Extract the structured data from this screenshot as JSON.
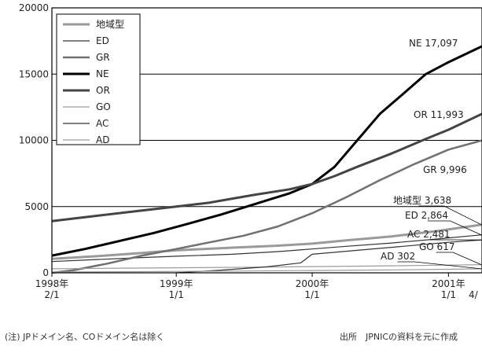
{
  "chart_data": {
    "type": "line",
    "x_ticks": [
      {
        "x": "1998-02-01",
        "line1": "1998年",
        "line2": "2/1"
      },
      {
        "x": "1999-01-01",
        "line1": "1999年",
        "line2": "1/1"
      },
      {
        "x": "2000-01-01",
        "line1": "2000年",
        "line2": "1/1"
      },
      {
        "x": "2001-01-01",
        "line1": "2001年",
        "line2": "1/1"
      }
    ],
    "x_end_label": "4/",
    "xlim": [
      "1998-02-01",
      "2001-04-01"
    ],
    "ylim": [
      0,
      20000
    ],
    "y_ticks": [
      0,
      5000,
      10000,
      15000,
      20000
    ],
    "gridlines_y": [
      5000,
      10000,
      15000
    ],
    "legend_position": "top-left",
    "series": [
      {
        "name": "地域型",
        "color": "#9a9a9a",
        "width": 3,
        "points": [
          [
            "1998-02-01",
            1050
          ],
          [
            "1998-06-01",
            1250
          ],
          [
            "1998-10-01",
            1500
          ],
          [
            "1999-01-01",
            1700
          ],
          [
            "1999-06-01",
            1900
          ],
          [
            "1999-10-01",
            2050
          ],
          [
            "2000-01-01",
            2200
          ],
          [
            "2000-04-01",
            2450
          ],
          [
            "2000-08-01",
            2750
          ],
          [
            "2000-12-01",
            3150
          ],
          [
            "2001-04-01",
            3638
          ]
        ]
      },
      {
        "name": "ED",
        "color": "#333333",
        "width": 1.2,
        "points": [
          [
            "1998-02-01",
            850
          ],
          [
            "1998-06-01",
            1000
          ],
          [
            "1998-10-01",
            1150
          ],
          [
            "1999-01-01",
            1250
          ],
          [
            "1999-06-01",
            1400
          ],
          [
            "1999-10-01",
            1600
          ],
          [
            "2000-01-01",
            1800
          ],
          [
            "2000-04-01",
            2000
          ],
          [
            "2000-08-01",
            2250
          ],
          [
            "2000-12-01",
            2550
          ],
          [
            "2001-04-01",
            2864
          ]
        ]
      },
      {
        "name": "GR",
        "color": "#707070",
        "width": 2.5,
        "points": [
          [
            "1998-02-01",
            0
          ],
          [
            "1998-04-01",
            200
          ],
          [
            "1998-07-01",
            700
          ],
          [
            "1998-10-01",
            1300
          ],
          [
            "1999-01-01",
            1800
          ],
          [
            "1999-04-01",
            2300
          ],
          [
            "1999-07-01",
            2800
          ],
          [
            "1999-10-01",
            3500
          ],
          [
            "2000-01-01",
            4500
          ],
          [
            "2000-04-01",
            5700
          ],
          [
            "2000-07-01",
            7000
          ],
          [
            "2000-10-01",
            8200
          ],
          [
            "2001-01-01",
            9300
          ],
          [
            "2001-04-01",
            9996
          ]
        ]
      },
      {
        "name": "NE",
        "color": "#000000",
        "width": 3,
        "points": [
          [
            "1998-02-01",
            1300
          ],
          [
            "1998-05-01",
            1800
          ],
          [
            "1998-08-01",
            2400
          ],
          [
            "1998-11-01",
            3000
          ],
          [
            "1999-02-01",
            3700
          ],
          [
            "1999-05-01",
            4400
          ],
          [
            "1999-08-01",
            5200
          ],
          [
            "1999-11-01",
            6000
          ],
          [
            "2000-01-01",
            6700
          ],
          [
            "2000-03-01",
            8000
          ],
          [
            "2000-05-01",
            10000
          ],
          [
            "2000-07-01",
            12000
          ],
          [
            "2000-09-01",
            13500
          ],
          [
            "2000-11-01",
            15000
          ],
          [
            "2001-01-01",
            15900
          ],
          [
            "2001-04-01",
            17097
          ]
        ]
      },
      {
        "name": "OR",
        "color": "#444444",
        "width": 3,
        "points": [
          [
            "1998-02-01",
            3900
          ],
          [
            "1998-06-01",
            4300
          ],
          [
            "1998-10-01",
            4700
          ],
          [
            "1999-01-01",
            5000
          ],
          [
            "1999-04-01",
            5300
          ],
          [
            "1999-06-01",
            5600
          ],
          [
            "1999-08-01",
            5900
          ],
          [
            "1999-11-01",
            6300
          ],
          [
            "2000-01-01",
            6700
          ],
          [
            "2000-03-01",
            7300
          ],
          [
            "2000-05-01",
            8000
          ],
          [
            "2000-08-01",
            9000
          ],
          [
            "2000-11-01",
            10100
          ],
          [
            "2001-01-01",
            10800
          ],
          [
            "2001-04-01",
            11993
          ]
        ]
      },
      {
        "name": "GO",
        "color": "#9a9a9a",
        "width": 1.2,
        "points": [
          [
            "1998-02-01",
            300
          ],
          [
            "1998-08-01",
            350
          ],
          [
            "1999-01-01",
            380
          ],
          [
            "1999-08-01",
            430
          ],
          [
            "2000-01-01",
            470
          ],
          [
            "2000-08-01",
            530
          ],
          [
            "2001-01-01",
            580
          ],
          [
            "2001-04-01",
            617
          ]
        ]
      },
      {
        "name": "AC",
        "color": "#333333",
        "width": 1.2,
        "points": [
          [
            "1999-01-01",
            0
          ],
          [
            "1999-05-01",
            200
          ],
          [
            "1999-09-01",
            450
          ],
          [
            "1999-12-01",
            750
          ],
          [
            "2000-01-01",
            1400
          ],
          [
            "2000-05-01",
            1700
          ],
          [
            "2000-09-01",
            2000
          ],
          [
            "2001-01-01",
            2300
          ],
          [
            "2001-04-01",
            2481
          ]
        ]
      },
      {
        "name": "AD",
        "color": "#9a9a9a",
        "width": 1.2,
        "points": [
          [
            "1998-02-01",
            60
          ],
          [
            "1998-10-01",
            90
          ],
          [
            "1999-06-01",
            130
          ],
          [
            "2000-01-01",
            170
          ],
          [
            "2000-08-01",
            220
          ],
          [
            "2001-01-01",
            270
          ],
          [
            "2001-04-01",
            302
          ]
        ]
      }
    ],
    "end_labels": [
      {
        "series": "NE",
        "name": "NE",
        "value": "17,097"
      },
      {
        "series": "OR",
        "name": "OR",
        "value": "11,993"
      },
      {
        "series": "GR",
        "name": "GR",
        "value": "9,996"
      },
      {
        "series": "地域型",
        "name": "地域型",
        "value": "3,638"
      },
      {
        "series": "ED",
        "name": "ED",
        "value": "2,864"
      },
      {
        "series": "AC",
        "name": "AC",
        "value": "2,481"
      },
      {
        "series": "GO",
        "name": "GO",
        "value": "617"
      },
      {
        "series": "AD",
        "name": "AD",
        "value": "302"
      }
    ]
  },
  "notes": {
    "left": "(注) JPドメイン名、COドメイン名は除く",
    "right": "出所　JPNICの資料を元に作成"
  }
}
